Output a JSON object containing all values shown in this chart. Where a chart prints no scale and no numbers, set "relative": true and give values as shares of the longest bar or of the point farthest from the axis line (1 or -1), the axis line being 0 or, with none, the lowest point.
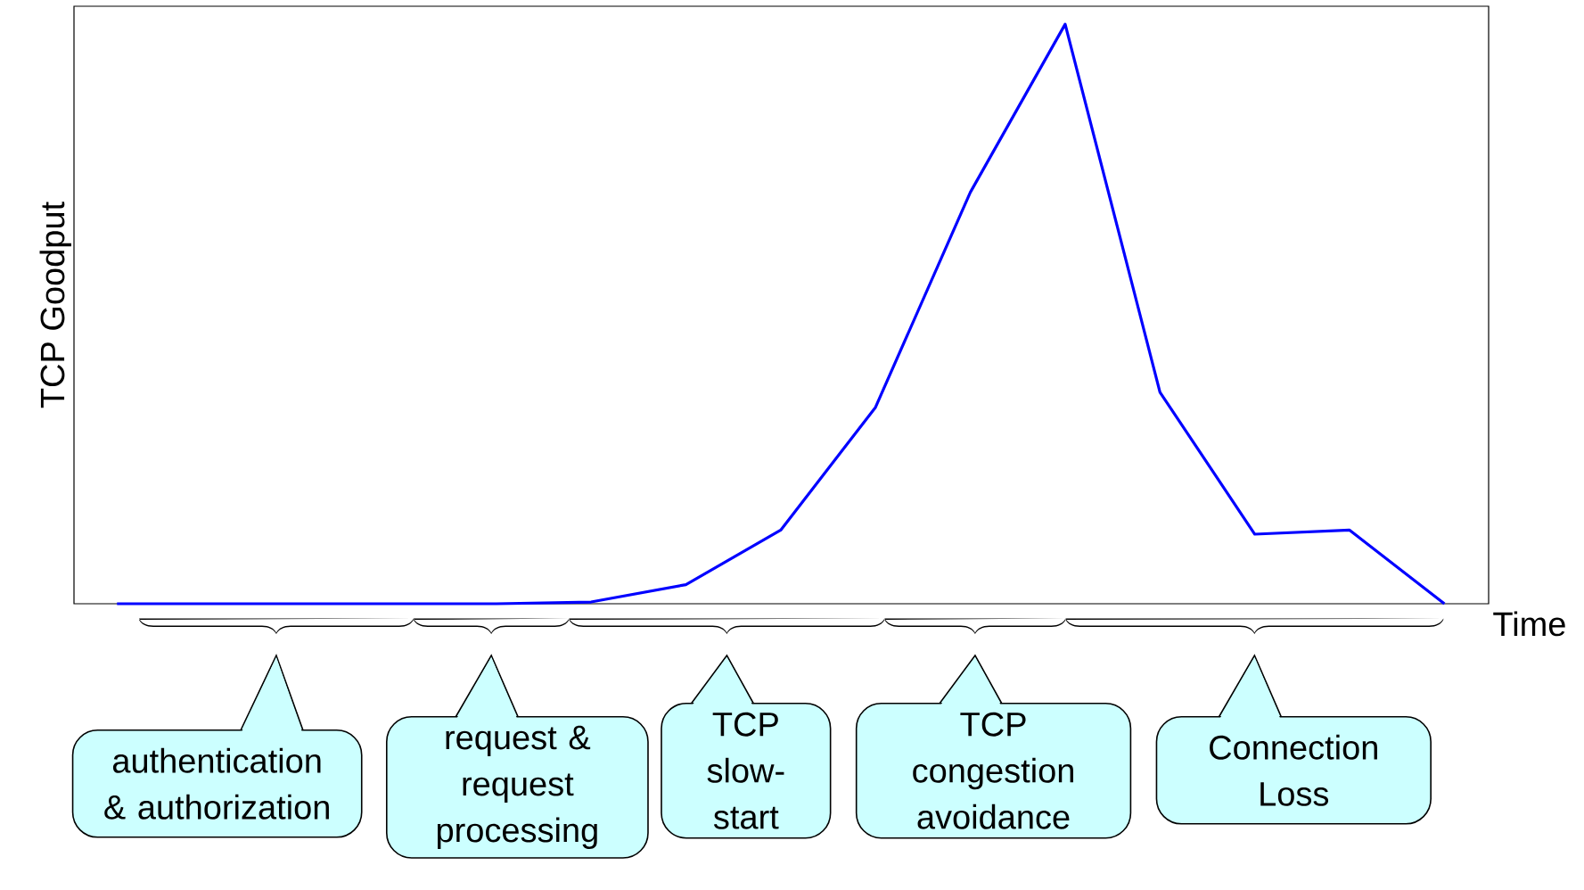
{
  "chart_data": {
    "type": "line",
    "relative": true,
    "xlabel": "Time",
    "ylabel": "TCP Goodput",
    "categories": [
      null,
      null,
      null,
      null,
      null,
      null,
      null,
      null,
      null,
      null,
      null,
      null,
      null,
      null,
      null
    ],
    "series": [
      {
        "color": "#0000ff",
        "values": [
          0,
          0,
          0,
          0,
          0,
          0.003,
          0.033,
          0.127,
          0.339,
          0.71,
          1,
          0.365,
          0.12,
          0.127,
          0
        ]
      }
    ],
    "marker": "none",
    "line_style": "solid",
    "annotations": [
      "authentication & authorization",
      "request & request processing",
      "TCP slow-start",
      "TCP congestion avoidance",
      "Connection Loss"
    ]
  }
}
